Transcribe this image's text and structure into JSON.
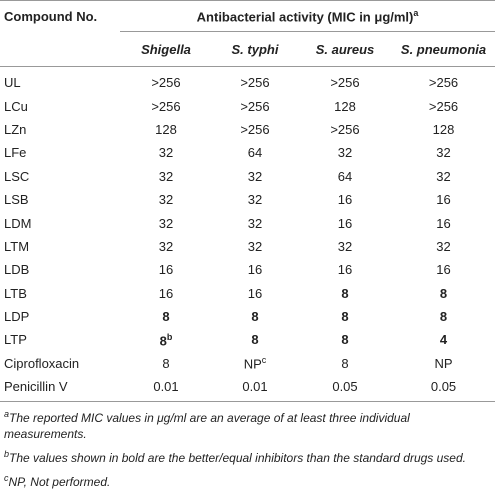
{
  "table": {
    "header": {
      "compound": "Compound No.",
      "activity": {
        "text": "Antibacterial activity (MIC in μg/ml)",
        "sup": "a"
      }
    },
    "species": [
      "Shigella",
      "S. typhi",
      "S. aureus",
      "S. pneumonia"
    ],
    "rows": [
      {
        "compound": "UL",
        "values": [
          ">256",
          ">256",
          ">256",
          ">256"
        ]
      },
      {
        "compound": "LCu",
        "values": [
          ">256",
          ">256",
          "128",
          ">256"
        ]
      },
      {
        "compound": "LZn",
        "values": [
          "128",
          ">256",
          ">256",
          "128"
        ]
      },
      {
        "compound": "LFe",
        "values": [
          "32",
          "64",
          "32",
          "32"
        ]
      },
      {
        "compound": "LSC",
        "values": [
          "32",
          "32",
          "64",
          "32"
        ]
      },
      {
        "compound": "LSB",
        "values": [
          "32",
          "32",
          "16",
          "16"
        ]
      },
      {
        "compound": "LDM",
        "values": [
          "32",
          "32",
          "16",
          "16"
        ]
      },
      {
        "compound": "LTM",
        "values": [
          "32",
          "32",
          "32",
          "32"
        ]
      },
      {
        "compound": "LDB",
        "values": [
          "16",
          "16",
          "16",
          "16"
        ]
      },
      {
        "compound": "LTB",
        "values": [
          "16",
          "16",
          {
            "text": "8",
            "bold": true
          },
          {
            "text": "8",
            "bold": true
          }
        ]
      },
      {
        "compound": "LDP",
        "values": [
          {
            "text": "8",
            "bold": true
          },
          {
            "text": "8",
            "bold": true
          },
          {
            "text": "8",
            "bold": true
          },
          {
            "text": "8",
            "bold": true
          }
        ]
      },
      {
        "compound": "LTP",
        "values": [
          {
            "text": "8",
            "sup": "b",
            "bold": true
          },
          {
            "text": "8",
            "bold": true
          },
          {
            "text": "8",
            "bold": true
          },
          {
            "text": "4",
            "bold": true
          }
        ]
      },
      {
        "compound": "Ciprofloxacin",
        "values": [
          "8",
          {
            "text": "NP",
            "sup": "c"
          },
          "8",
          "NP"
        ]
      },
      {
        "compound": "Penicillin V",
        "values": [
          "0.01",
          "0.01",
          "0.05",
          "0.05"
        ]
      }
    ],
    "footnotes": [
      {
        "marker": "a",
        "text": "The reported MIC values in μg/ml are an average of at least three individual measurements."
      },
      {
        "marker": "b",
        "text": "The values shown in bold are the better/equal inhibitors than the standard drugs used."
      },
      {
        "marker": "c",
        "text": "NP, Not performed."
      }
    ]
  }
}
